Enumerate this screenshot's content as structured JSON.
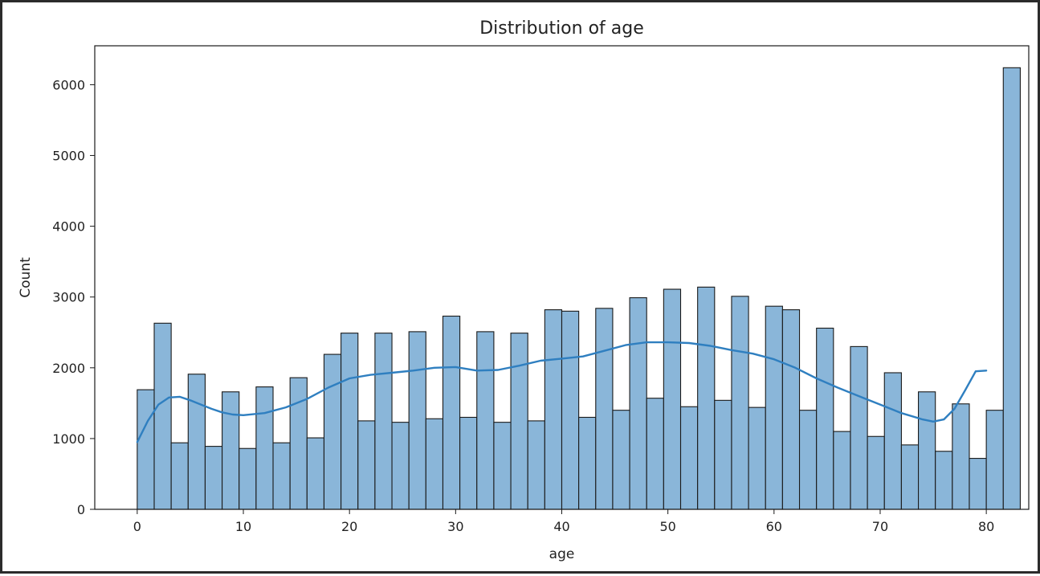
{
  "chart_data": {
    "type": "bar",
    "title": "Distribution of age",
    "xlabel": "age",
    "ylabel": "Count",
    "xlim": [
      -4,
      84
    ],
    "ylim": [
      0,
      6550
    ],
    "x_ticks": [
      0,
      10,
      20,
      30,
      40,
      50,
      60,
      70,
      80
    ],
    "y_ticks": [
      0,
      1000,
      2000,
      3000,
      4000,
      5000,
      6000
    ],
    "bar_color": "#8ab6d9",
    "bar_edge_color": "#1a1a1a",
    "kde_color": "#2f7fc0",
    "bin_start": 0,
    "bin_width": 1.6,
    "values": [
      1690,
      2630,
      940,
      1910,
      890,
      1660,
      860,
      1730,
      940,
      1860,
      1010,
      2190,
      2490,
      1250,
      2490,
      1230,
      2510,
      1280,
      2730,
      1300,
      2510,
      1230,
      2490,
      1250,
      2820,
      2800,
      1300,
      2840,
      1400,
      2990,
      1570,
      3110,
      1450,
      3140,
      1540,
      3010,
      1440,
      2870,
      2820,
      1400,
      2560,
      1100,
      2300,
      1030,
      1930,
      910,
      1660,
      820,
      1490,
      720,
      1400,
      6240
    ],
    "kde_x": [
      0,
      1,
      2,
      3,
      4,
      5,
      6,
      7,
      8,
      9,
      10,
      12,
      14,
      16,
      18,
      20,
      22,
      24,
      26,
      28,
      30,
      32,
      34,
      36,
      38,
      40,
      42,
      44,
      46,
      48,
      50,
      52,
      54,
      56,
      58,
      60,
      62,
      64,
      66,
      68,
      70,
      72,
      74,
      75,
      76,
      77,
      78,
      79,
      80
    ],
    "kde_y": [
      950,
      1250,
      1480,
      1580,
      1590,
      1540,
      1480,
      1420,
      1370,
      1340,
      1330,
      1360,
      1440,
      1560,
      1720,
      1850,
      1900,
      1930,
      1960,
      2000,
      2010,
      1960,
      1970,
      2030,
      2100,
      2130,
      2160,
      2240,
      2320,
      2360,
      2360,
      2350,
      2310,
      2250,
      2200,
      2120,
      2000,
      1850,
      1720,
      1600,
      1480,
      1360,
      1270,
      1240,
      1270,
      1420,
      1680,
      1950,
      1960
    ]
  }
}
